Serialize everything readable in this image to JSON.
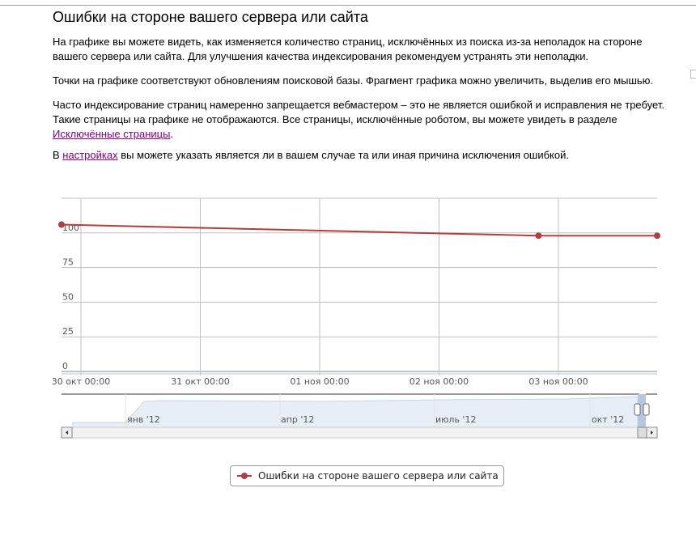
{
  "page": {
    "title": "Ошибки на стороне вашего сервера или сайта",
    "p1": "На графике вы можете видеть, как изменяется количество страниц, исключённых из поиска из-за неполадок на стороне вашего сервера или сайта. Для улучшения качества индексирования рекомендуем устранять эти неполадки.",
    "p2": "Точки на графике соответствуют обновлениям поисковой базы. Фрагмент графика можно увеличить, выделив его мышью.",
    "p3_text": "Часто индексирование страниц намеренно запрещается вебмастером – это не является ошибкой и исправления не требует. Такие страницы на графике не отображаются. Все страницы, исключённые роботом, вы можете увидеть в разделе ",
    "p3_link": "Исключённые страницы",
    "p3_end": ".",
    "p4_start": "В ",
    "p4_link": "настройках",
    "p4_text": " вы можете указать является ли в вашем случае та или иная причина исключения ошибкой."
  },
  "chart_data": {
    "type": "line",
    "title": "",
    "xlabel": "",
    "ylabel": "",
    "grid": true,
    "legend_placement": "bottom-center",
    "y_ticks": [
      "0",
      "25",
      "50",
      "75",
      "100"
    ],
    "ylim": [
      0,
      125
    ],
    "x_ticks": [
      "30 окт 00:00",
      "31 окт 00:00",
      "01 ноя 00:00",
      "02 ноя 00:00",
      "03 ноя 00:00"
    ],
    "series": [
      {
        "name": "Ошибки на стороне вашего сервера или сайта",
        "color": "#b04040",
        "points": [
          {
            "x": "29 окт 20:00",
            "y": 106
          },
          {
            "x": "02 ноя 20:00",
            "y": 98
          },
          {
            "x": "03 ноя 20:00",
            "y": 98
          }
        ]
      }
    ],
    "navigator": {
      "labels": [
        "янв '12",
        "апр '12",
        "июль '12",
        "окт '12"
      ],
      "fill_color": "#e8eef5",
      "selection_color": "#b5c8e0"
    }
  }
}
